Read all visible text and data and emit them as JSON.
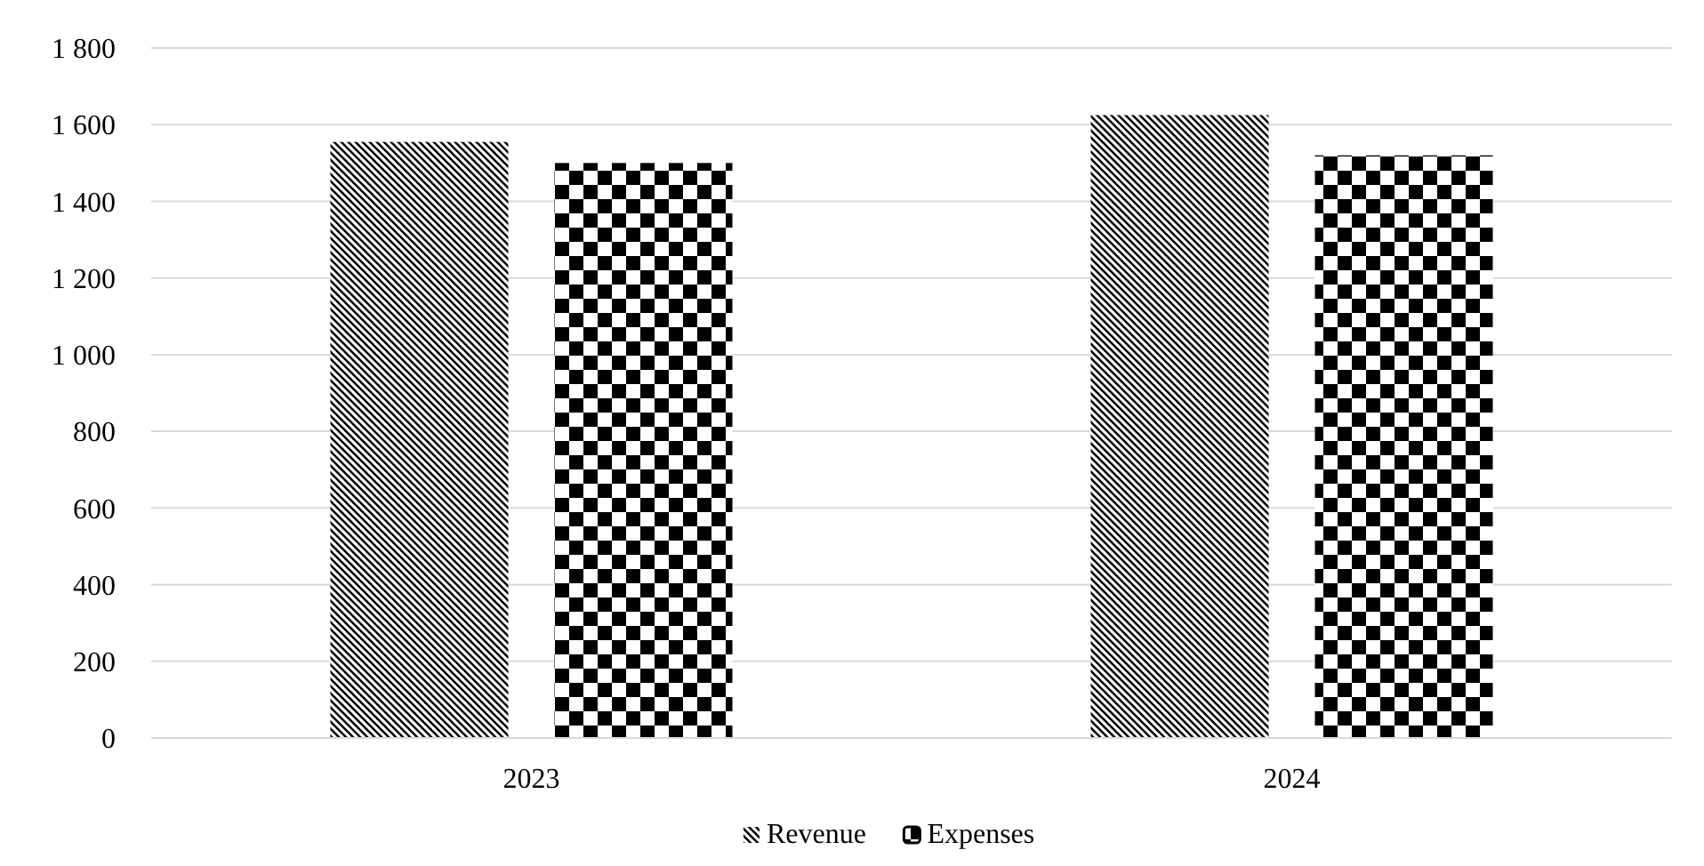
{
  "chart_data": {
    "type": "bar",
    "categories": [
      "2023",
      "2024"
    ],
    "series": [
      {
        "name": "Revenue",
        "color": "#000000",
        "values": [
          1555,
          1625
        ]
      },
      {
        "name": "Expenses",
        "color": "#000000",
        "values": [
          1500,
          1520
        ]
      }
    ],
    "ylim": [
      0,
      1800
    ],
    "yticks": [
      0,
      200,
      400,
      600,
      800,
      {
        "value": 1000,
        "label": "1 000"
      },
      {
        "value": 1200,
        "label": "1 200"
      },
      {
        "value": 1400,
        "label": "1 400"
      },
      {
        "value": 1600,
        "label": "1 600"
      },
      {
        "value": 1800,
        "label": "1 800"
      }
    ],
    "grid": "y",
    "legend": "bottom"
  }
}
